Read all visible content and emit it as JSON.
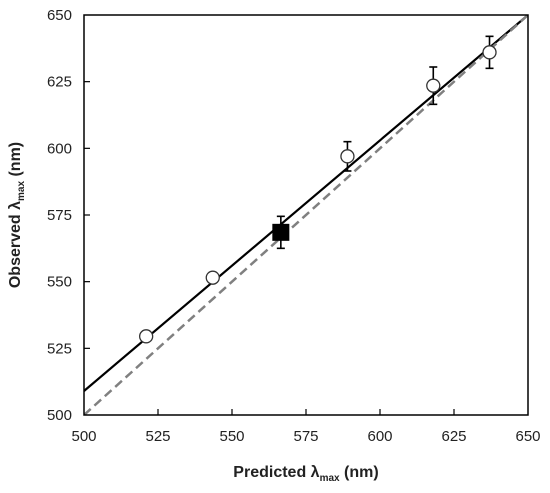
{
  "chart_data": {
    "type": "scatter",
    "xlabel": {
      "main": "Predicted λ",
      "sub": "max",
      "unit": " (nm)"
    },
    "ylabel": {
      "main": "Observed λ",
      "sub": "max",
      "unit": " (nm)"
    },
    "xlim": [
      500,
      650
    ],
    "ylim": [
      500,
      650
    ],
    "x_ticks": [
      "500",
      "525",
      "550",
      "575",
      "600",
      "625",
      "650"
    ],
    "y_ticks": [
      "500",
      "525",
      "550",
      "575",
      "600",
      "625",
      "650"
    ],
    "grid": false,
    "legend": "none",
    "series": [
      {
        "marker": "open-circle",
        "points": [
          {
            "x": 521,
            "y": 529.5,
            "err": 0
          },
          {
            "x": 543.5,
            "y": 551.5,
            "err": 0
          },
          {
            "x": 589,
            "y": 597,
            "err": 5.5
          },
          {
            "x": 618,
            "y": 623.5,
            "err": 7
          },
          {
            "x": 637,
            "y": 636,
            "err": 6
          }
        ]
      },
      {
        "marker": "filled-square",
        "points": [
          {
            "x": 566.5,
            "y": 568.5,
            "err": 6
          }
        ]
      }
    ],
    "lines": [
      {
        "style": "solid",
        "color": "#000000",
        "x": [
          500,
          650
        ],
        "y": [
          509,
          650
        ]
      },
      {
        "style": "dashed",
        "color": "#808080",
        "x": [
          500,
          650
        ],
        "y": [
          500,
          650
        ]
      }
    ]
  }
}
